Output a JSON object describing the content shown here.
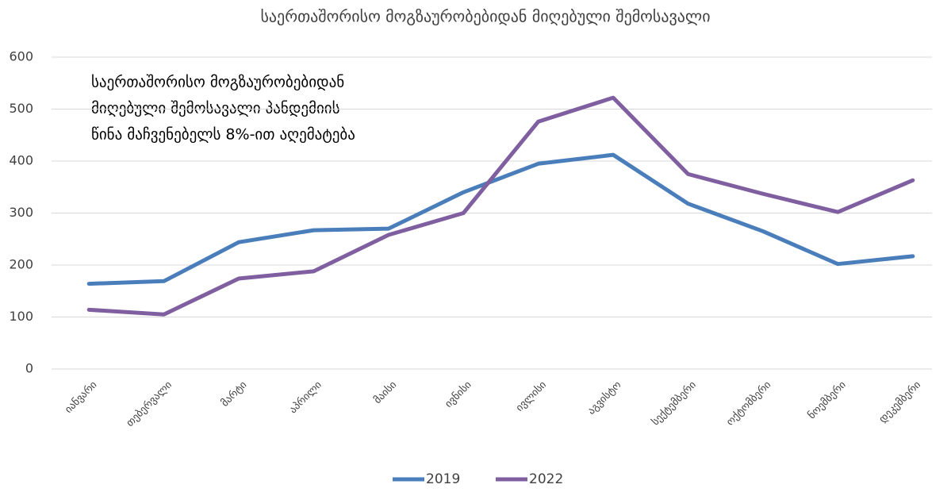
{
  "chart_data": {
    "type": "line",
    "title": "საერთაშორისო მოგზაურობებიდან მიღებული შემოსავალი",
    "annotation": [
      "საერთაშორისო მოგზაურობებიდან",
      "მიღებული შემოსავალი პანდემიის",
      "წინა მაჩვენებელს 8%-ით აღემატება"
    ],
    "categories": [
      "იანვარი",
      "თებერვალი",
      "მარტი",
      "აპრილი",
      "მაისი",
      "ივნისი",
      "ივლისი",
      "აგვისტო",
      "სექტემბერი",
      "ოქტომბერი",
      "ნოემბერი",
      "დეკემბერი"
    ],
    "series": [
      {
        "name": "2019",
        "color": "#4a7ebb",
        "values": [
          164,
          169,
          244,
          267,
          270,
          340,
          395,
          412,
          318,
          265,
          202,
          217
        ]
      },
      {
        "name": "2022",
        "color": "#7f5fa0",
        "values": [
          114,
          105,
          174,
          188,
          258,
          300,
          476,
          522,
          375,
          337,
          302,
          363
        ]
      }
    ],
    "ylim": [
      0,
      600
    ],
    "yticks": [
      0,
      100,
      200,
      300,
      400,
      500,
      600
    ],
    "grid": true,
    "legend": "bottom"
  }
}
